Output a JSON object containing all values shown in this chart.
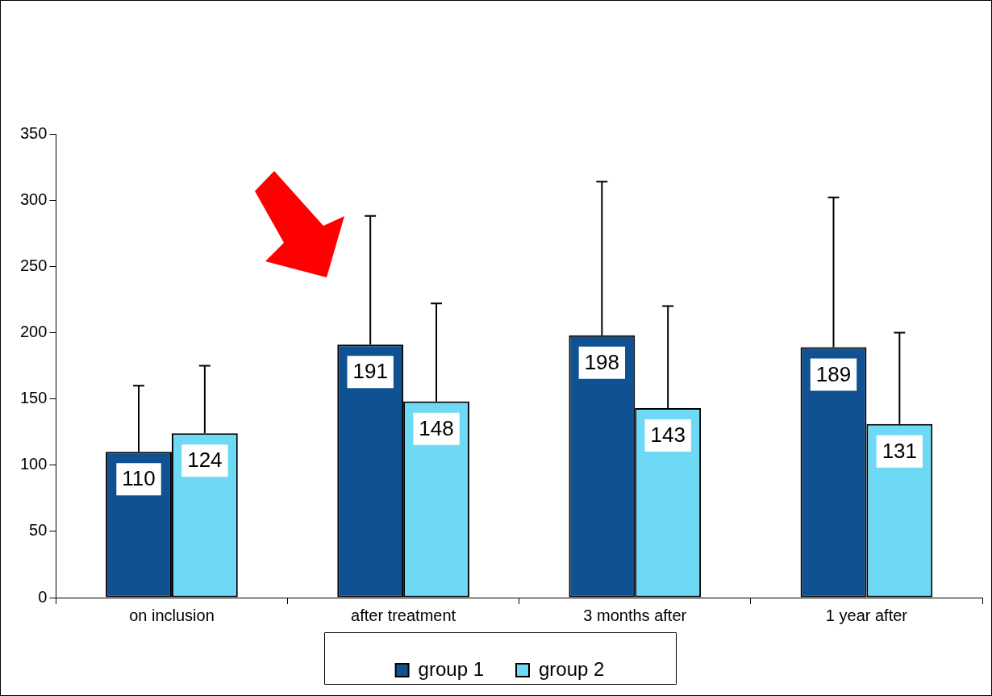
{
  "chart_data": {
    "type": "bar",
    "categories": [
      "on inclusion",
      "after treatment",
      "3 months after",
      "1 year after"
    ],
    "series": [
      {
        "name": "group 1",
        "color": "#0f5191",
        "values": [
          110,
          191,
          198,
          189
        ],
        "errors": [
          [
            110,
            160
          ],
          [
            191,
            288
          ],
          [
            198,
            314
          ],
          [
            189,
            302
          ]
        ]
      },
      {
        "name": "group 2",
        "color": "#6dd9f5",
        "values": [
          124,
          148,
          143,
          131
        ],
        "errors": [
          [
            124,
            175
          ],
          [
            148,
            222
          ],
          [
            143,
            220
          ],
          [
            131,
            200
          ]
        ]
      }
    ],
    "ylim": [
      0,
      350
    ],
    "yticks": [
      0,
      50,
      100,
      150,
      200,
      250,
      300,
      350
    ],
    "grid": false,
    "legend": "bottom",
    "data_labels": true
  }
}
